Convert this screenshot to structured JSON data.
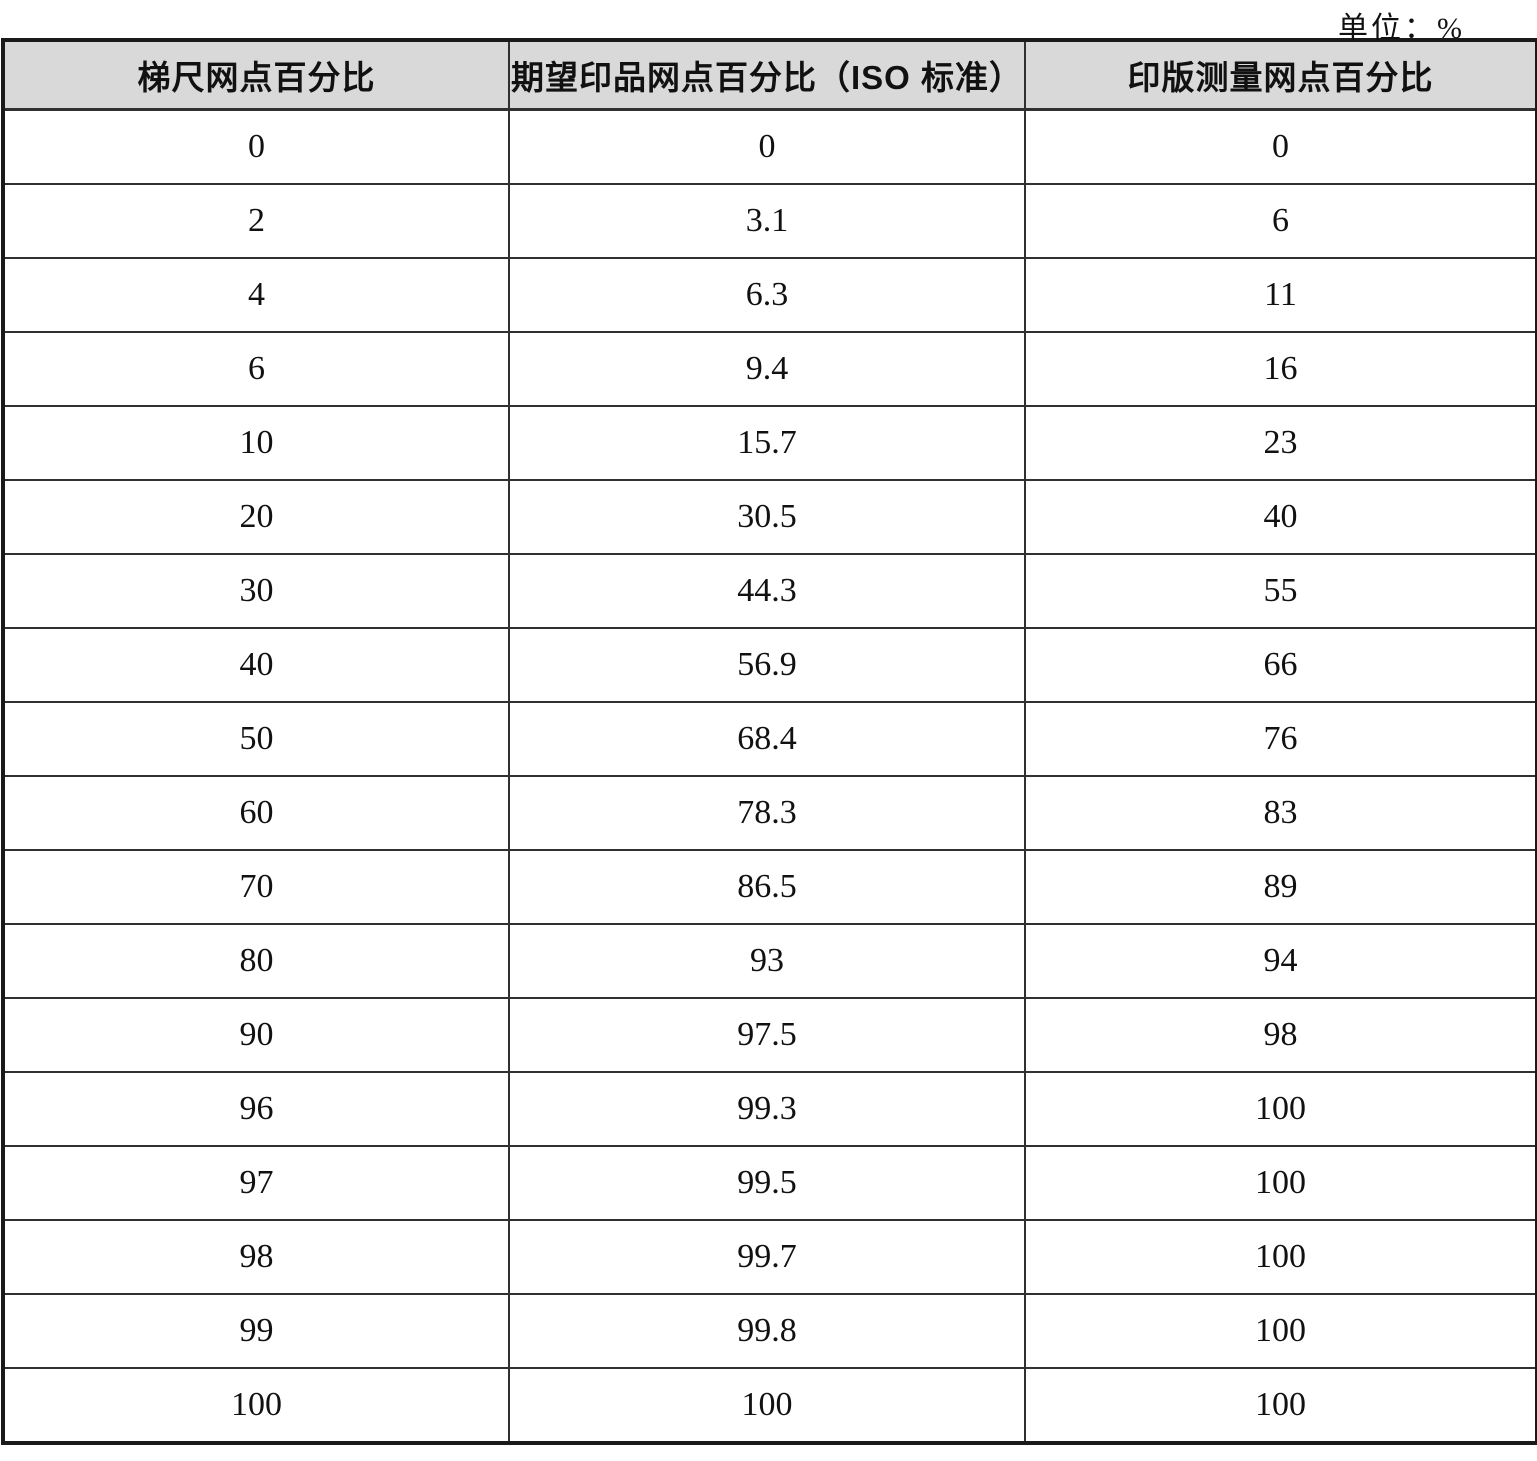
{
  "unit_label": "单位：%",
  "table": {
    "headers": [
      "梯尺网点百分比",
      "期望印品网点百分比（ISO 标准）",
      "印版测量网点百分比"
    ],
    "rows": [
      [
        "0",
        "0",
        "0"
      ],
      [
        "2",
        "3.1",
        "6"
      ],
      [
        "4",
        "6.3",
        "11"
      ],
      [
        "6",
        "9.4",
        "16"
      ],
      [
        "10",
        "15.7",
        "23"
      ],
      [
        "20",
        "30.5",
        "40"
      ],
      [
        "30",
        "44.3",
        "55"
      ],
      [
        "40",
        "56.9",
        "66"
      ],
      [
        "50",
        "68.4",
        "76"
      ],
      [
        "60",
        "78.3",
        "83"
      ],
      [
        "70",
        "86.5",
        "89"
      ],
      [
        "80",
        "93",
        "94"
      ],
      [
        "90",
        "97.5",
        "98"
      ],
      [
        "96",
        "99.3",
        "100"
      ],
      [
        "97",
        "99.5",
        "100"
      ],
      [
        "98",
        "99.7",
        "100"
      ],
      [
        "99",
        "99.8",
        "100"
      ],
      [
        "100",
        "100",
        "100"
      ]
    ]
  },
  "colors": {
    "header_bg": "#d9d9d9",
    "outer_border": "#1a1a1a",
    "inner_border": "#303030",
    "text": "#111111"
  }
}
